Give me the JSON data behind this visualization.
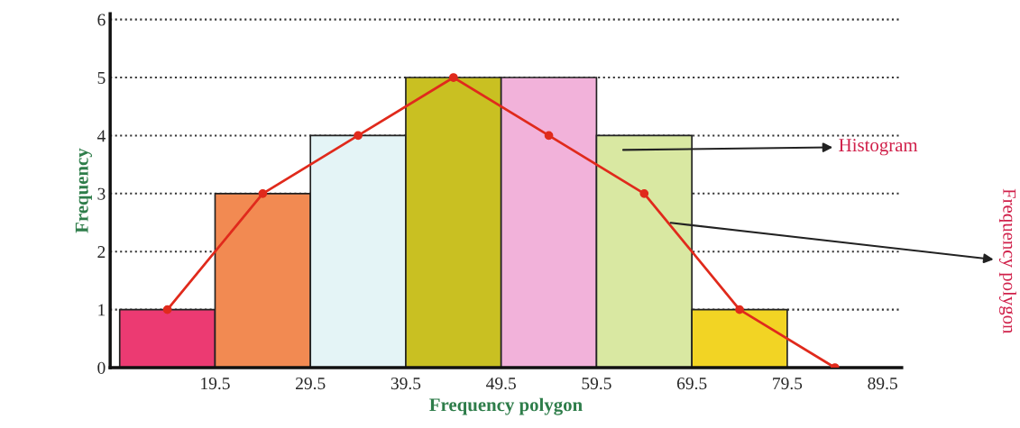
{
  "chart_data": {
    "type": "histogram",
    "xlabel": "Frequency polygon",
    "ylabel": "Frequency",
    "series": [
      {
        "bins": [
          9.5,
          19.5,
          29.5,
          39.5,
          49.5,
          59.5,
          69.5,
          79.5
        ],
        "values": [
          1,
          3,
          4,
          5,
          5,
          4,
          1
        ],
        "colors": [
          "#ec3a72",
          "#f28a52",
          "#e4f4f6",
          "#c9c022",
          "#f2b2da",
          "#d9e8a2",
          "#f2d424"
        ]
      },
      {
        "type": "line",
        "x": [
          14.5,
          24.5,
          34.5,
          44.5,
          54.5,
          64.5,
          74.5,
          84.5
        ],
        "values": [
          1,
          3,
          4,
          5,
          4,
          3,
          1,
          0
        ],
        "color": "#e02a1c",
        "marker": "circle",
        "line_style": "solid"
      }
    ],
    "xlim": [
      8.5,
      91.5
    ],
    "ylim": [
      0,
      6.1
    ],
    "xticks": [
      19.5,
      29.5,
      39.5,
      49.5,
      59.5,
      69.5,
      79.5,
      89.5
    ],
    "yticks": [
      0,
      1,
      2,
      3,
      4,
      5,
      6
    ],
    "grid": "y",
    "annotations": [
      "Histogram",
      "Frequency polygon"
    ]
  }
}
